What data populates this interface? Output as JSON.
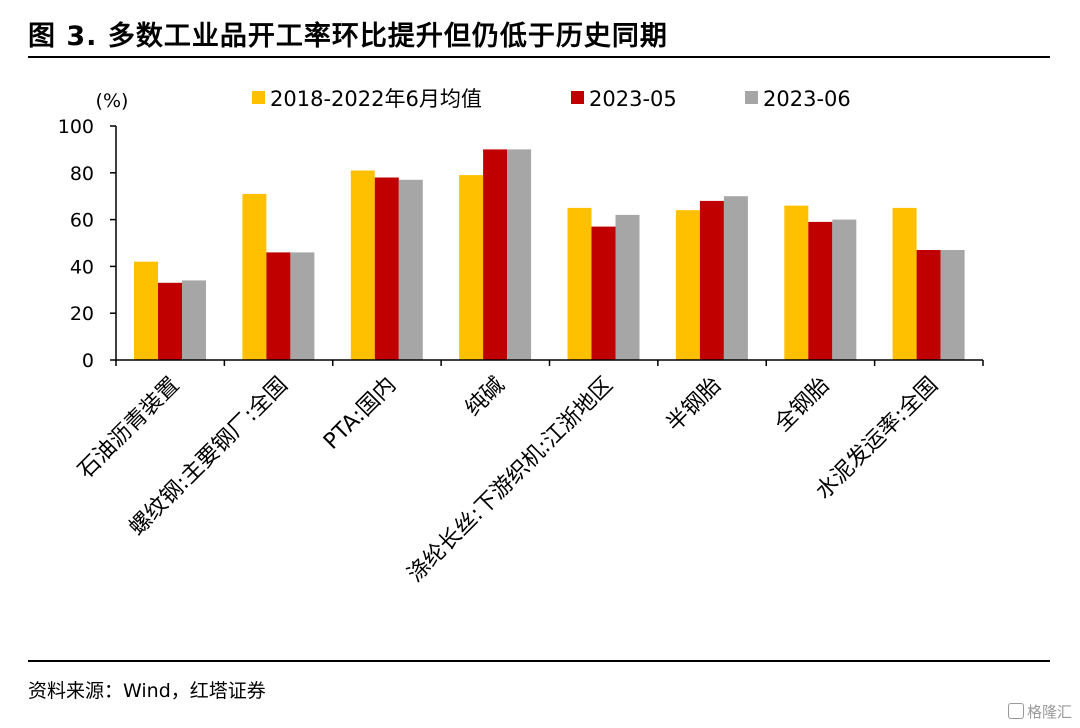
{
  "figure": {
    "title": "图 3. 多数工业品开工率环比提升但仍低于历史同期",
    "source": "资料来源：Wind，红塔证券",
    "watermark": "格隆汇"
  },
  "chart_data": {
    "type": "bar",
    "y_unit_label": "(%)",
    "ylim": [
      0,
      100
    ],
    "yticks": [
      0,
      20,
      40,
      60,
      80,
      100
    ],
    "grid": false,
    "legend_position": "top",
    "categories": [
      "石油沥青装置",
      "螺纹钢:主要钢厂:全国",
      "PTA:国内",
      "纯碱",
      "涤纶长丝:下游织机:江浙地区",
      "半钢胎",
      "全钢胎",
      "水泥发运率:全国"
    ],
    "series": [
      {
        "name": "2018-2022年6月均值",
        "color": "#FFC000",
        "values": [
          42,
          71,
          81,
          79,
          65,
          64,
          66,
          65
        ]
      },
      {
        "name": "2023-05",
        "color": "#C00000",
        "values": [
          33,
          46,
          78,
          90,
          57,
          68,
          59,
          47
        ]
      },
      {
        "name": "2023-06",
        "color": "#A6A6A6",
        "values": [
          34,
          46,
          77,
          90,
          62,
          70,
          60,
          47
        ]
      }
    ]
  }
}
